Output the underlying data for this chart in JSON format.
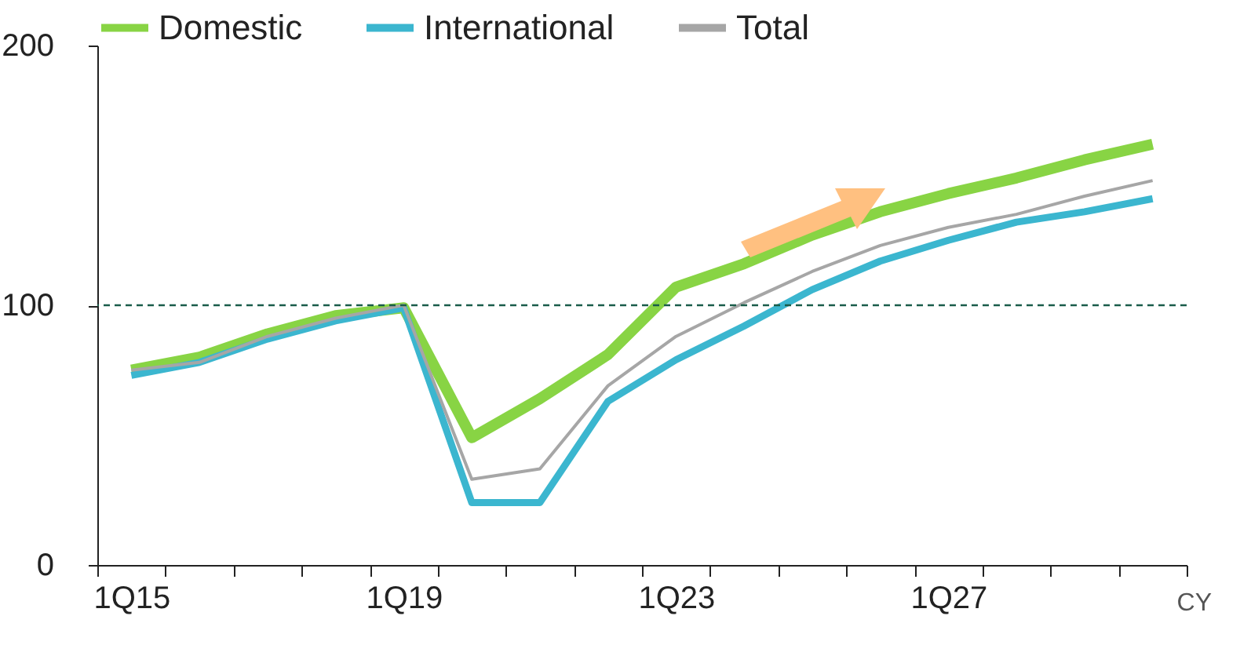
{
  "chart_data": {
    "type": "line",
    "categories": [
      "1Q15",
      null,
      null,
      null,
      "1Q19",
      null,
      null,
      null,
      "1Q23",
      null,
      null,
      null,
      "1Q27",
      null,
      null,
      null
    ],
    "series": [
      {
        "name": "Domestic",
        "color": "#88d444",
        "values": [
          75,
          80,
          89,
          96,
          99,
          49,
          64,
          81,
          107,
          116,
          127,
          136,
          143,
          149,
          156,
          162
        ]
      },
      {
        "name": "International",
        "color": "#3bb6cf",
        "values": [
          73,
          78,
          87,
          94,
          99,
          24,
          24,
          63,
          79,
          92,
          106,
          117,
          125,
          132,
          136,
          141
        ]
      },
      {
        "name": "Total",
        "color": "#a6a6a6",
        "values": [
          75,
          78,
          88,
          95,
          100,
          33,
          37,
          69,
          88,
          101,
          113,
          123,
          130,
          135,
          142,
          148
        ]
      }
    ],
    "ylim": [
      0,
      200
    ],
    "yticks": [
      0,
      100,
      200
    ],
    "ref_lines": [
      {
        "axis": "y",
        "value": 100,
        "label": null,
        "color": "#1a5c4a",
        "line_style": "dashed"
      }
    ],
    "annotations": [
      "CY"
    ],
    "legend": "top",
    "grid": false,
    "marker": "none",
    "line_style": "solid"
  }
}
